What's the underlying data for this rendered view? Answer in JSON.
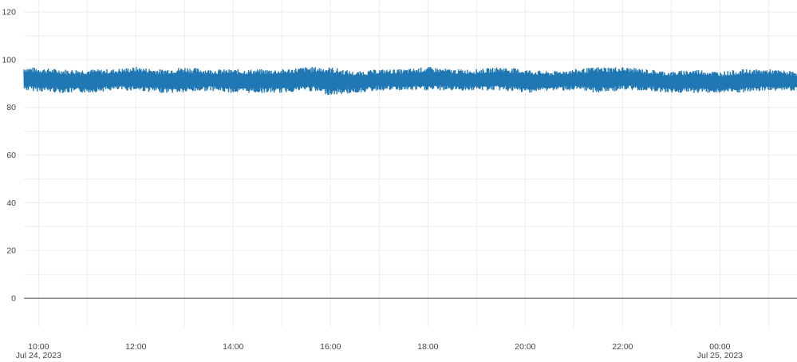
{
  "chart_data": {
    "type": "line",
    "x_start": "2023-07-24T09:42",
    "x_end": "2023-07-25T01:35",
    "ylim": [
      -12,
      125
    ],
    "y_ticks": [
      {
        "value": 0,
        "label": "0"
      },
      {
        "value": 20,
        "label": "20"
      },
      {
        "value": 40,
        "label": "40"
      },
      {
        "value": 60,
        "label": "60"
      },
      {
        "value": 80,
        "label": "80"
      },
      {
        "value": 100,
        "label": "100"
      },
      {
        "value": 120,
        "label": "120"
      }
    ],
    "x_ticks": [
      {
        "value": "2023-07-24T10:00",
        "label": "10:00",
        "sublabel": "Jul 24, 2023"
      },
      {
        "value": "2023-07-24T12:00",
        "label": "12:00",
        "sublabel": ""
      },
      {
        "value": "2023-07-24T14:00",
        "label": "14:00",
        "sublabel": ""
      },
      {
        "value": "2023-07-24T16:00",
        "label": "16:00",
        "sublabel": ""
      },
      {
        "value": "2023-07-24T18:00",
        "label": "18:00",
        "sublabel": ""
      },
      {
        "value": "2023-07-24T20:00",
        "label": "20:00",
        "sublabel": ""
      },
      {
        "value": "2023-07-24T22:00",
        "label": "22:00",
        "sublabel": ""
      },
      {
        "value": "2023-07-25T00:00",
        "label": "00:00",
        "sublabel": "Jul 25, 2023"
      }
    ],
    "grid": true,
    "legend": "none",
    "series": [
      {
        "color": "#1f77b4",
        "description_note": "",
        "x": [
          "2023-07-24T09:42",
          "2023-07-24T10:30",
          "2023-07-24T11:00",
          "2023-07-24T11:30",
          "2023-07-24T12:00",
          "2023-07-24T12:30",
          "2023-07-24T13:00",
          "2023-07-24T13:30",
          "2023-07-24T14:00",
          "2023-07-24T14:30",
          "2023-07-24T15:00",
          "2023-07-24T15:30",
          "2023-07-24T16:00",
          "2023-07-24T16:30",
          "2023-07-24T17:00",
          "2023-07-24T17:30",
          "2023-07-24T18:00",
          "2023-07-24T18:30",
          "2023-07-24T19:00",
          "2023-07-24T19:30",
          "2023-07-24T20:00",
          "2023-07-24T20:30",
          "2023-07-24T21:00",
          "2023-07-24T21:30",
          "2023-07-24T22:00",
          "2023-07-24T22:30",
          "2023-07-24T23:00",
          "2023-07-24T23:30",
          "2023-07-25T00:00",
          "2023-07-25T00:30",
          "2023-07-25T01:00",
          "2023-07-25T01:35"
        ],
        "y_min": [
          87,
          86,
          86,
          87,
          87,
          86,
          86,
          87,
          86,
          86,
          86,
          87,
          85,
          86,
          87,
          87,
          87,
          87,
          87,
          87,
          86,
          87,
          87,
          86,
          87,
          87,
          86,
          86,
          86,
          86,
          87,
          87
        ],
        "y_max": [
          97,
          96,
          96,
          96,
          97,
          96,
          97,
          96,
          96,
          96,
          96,
          97,
          97,
          95,
          96,
          96,
          97,
          96,
          96,
          97,
          96,
          95,
          96,
          97,
          97,
          96,
          95,
          96,
          95,
          96,
          96,
          95
        ]
      }
    ]
  }
}
